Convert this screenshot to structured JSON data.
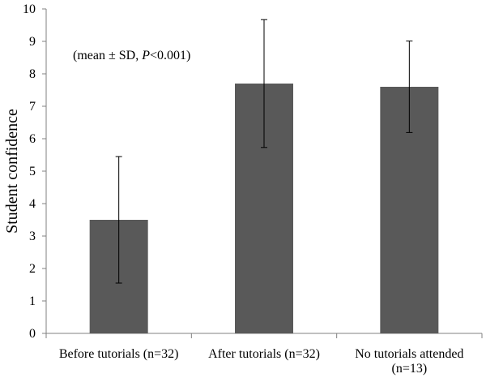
{
  "chart_data": {
    "type": "bar",
    "categories": [
      [
        "Before tutorials (n=32)"
      ],
      [
        "After tutorials (n=32)"
      ],
      [
        "No tutorials attended",
        "(n=13)"
      ]
    ],
    "values": [
      3.5,
      7.7,
      7.6
    ],
    "error_sd": [
      1.95,
      1.97,
      1.41
    ],
    "title": "",
    "xlabel": "",
    "ylabel": "Student confidence",
    "ylim": [
      0,
      10
    ],
    "yticks": [
      0,
      1,
      2,
      3,
      4,
      5,
      6,
      7,
      8,
      9,
      10
    ],
    "grid": false,
    "annotation": {
      "prefix": "(mean ± SD, ",
      "italic": "P",
      "suffix": "<0.001)"
    },
    "colors": {
      "bar": "#595959",
      "axis": "#808080",
      "error_bar": "#000000"
    }
  }
}
